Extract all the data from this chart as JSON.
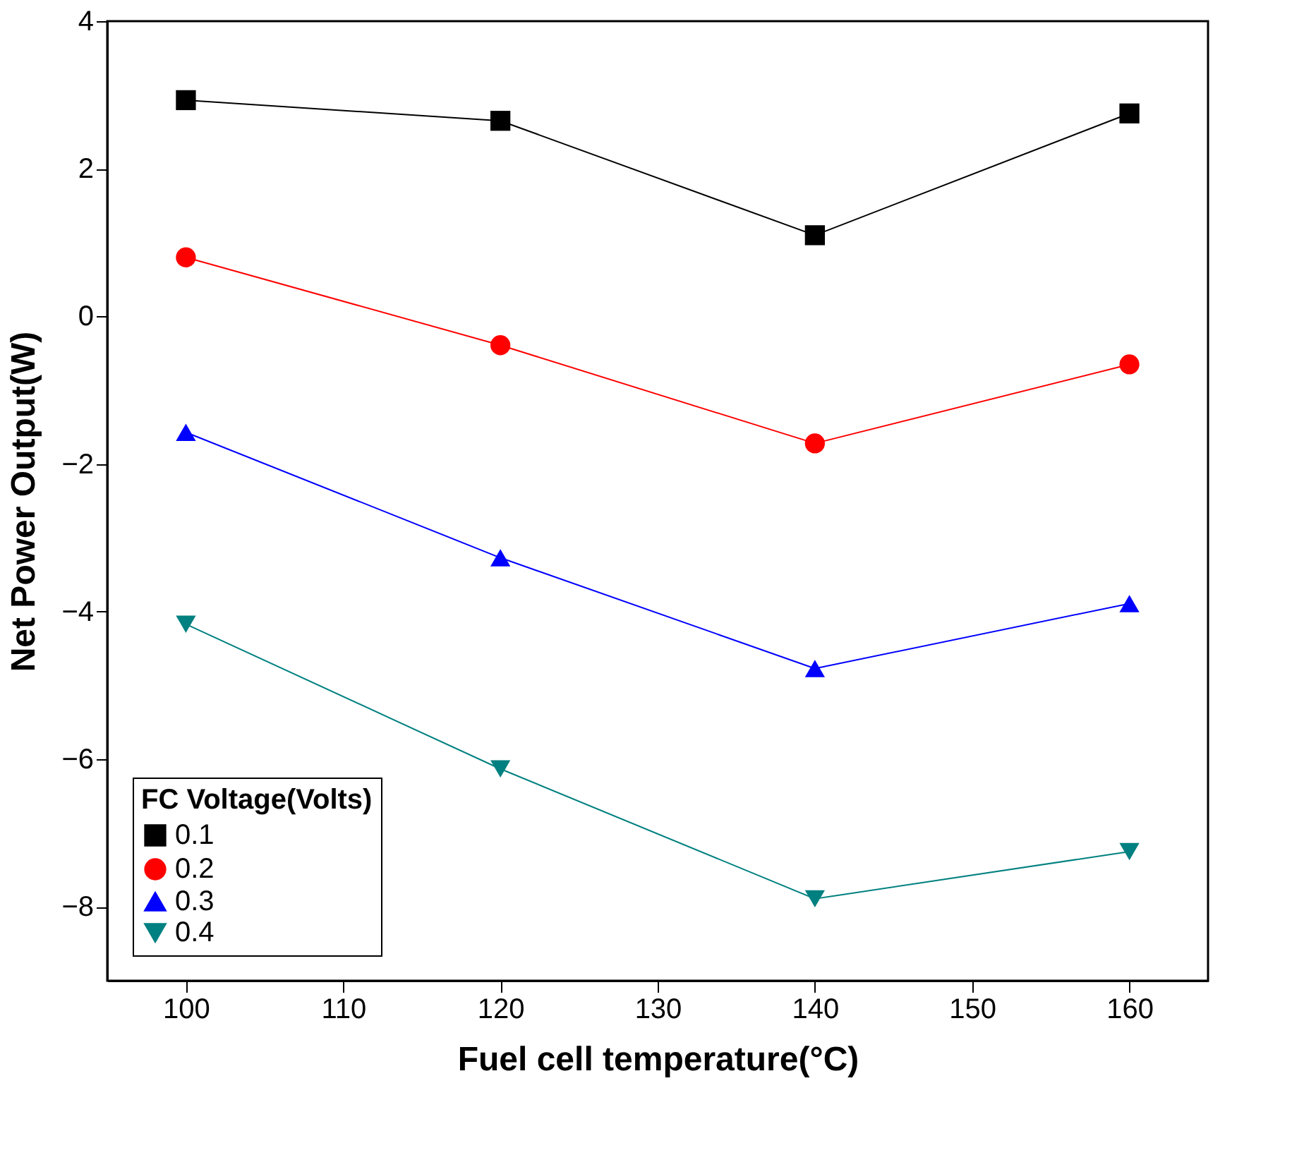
{
  "chart_data": {
    "type": "line",
    "xlabel": "Fuel cell temperature(°C)",
    "ylabel": "Net Power Output(W)",
    "legend_title": "FC Voltage(Volts)",
    "legend": "bottom left",
    "grid": false,
    "line_style": "solid",
    "x": [
      100,
      120,
      140,
      160
    ],
    "xlim": [
      95,
      165
    ],
    "xticks": [
      100,
      110,
      120,
      130,
      140,
      150,
      160
    ],
    "ylim": [
      -9,
      4
    ],
    "yticks": [
      -8,
      -6,
      -4,
      -2,
      0,
      2,
      4
    ],
    "series": [
      {
        "name": "0.1",
        "color": "#000000",
        "marker": "square",
        "values": [
          2.93,
          2.65,
          1.1,
          2.75
        ]
      },
      {
        "name": "0.2",
        "color": "#ff0000",
        "marker": "circle",
        "values": [
          0.8,
          -0.39,
          -1.72,
          -0.65
        ]
      },
      {
        "name": "0.3",
        "color": "#0000ff",
        "marker": "triangle",
        "values": [
          -1.57,
          -3.27,
          -4.77,
          -3.89
        ]
      },
      {
        "name": "0.4",
        "color": "#008080",
        "marker": "triangle-down",
        "values": [
          -4.17,
          -6.13,
          -7.89,
          -7.25
        ]
      }
    ]
  }
}
